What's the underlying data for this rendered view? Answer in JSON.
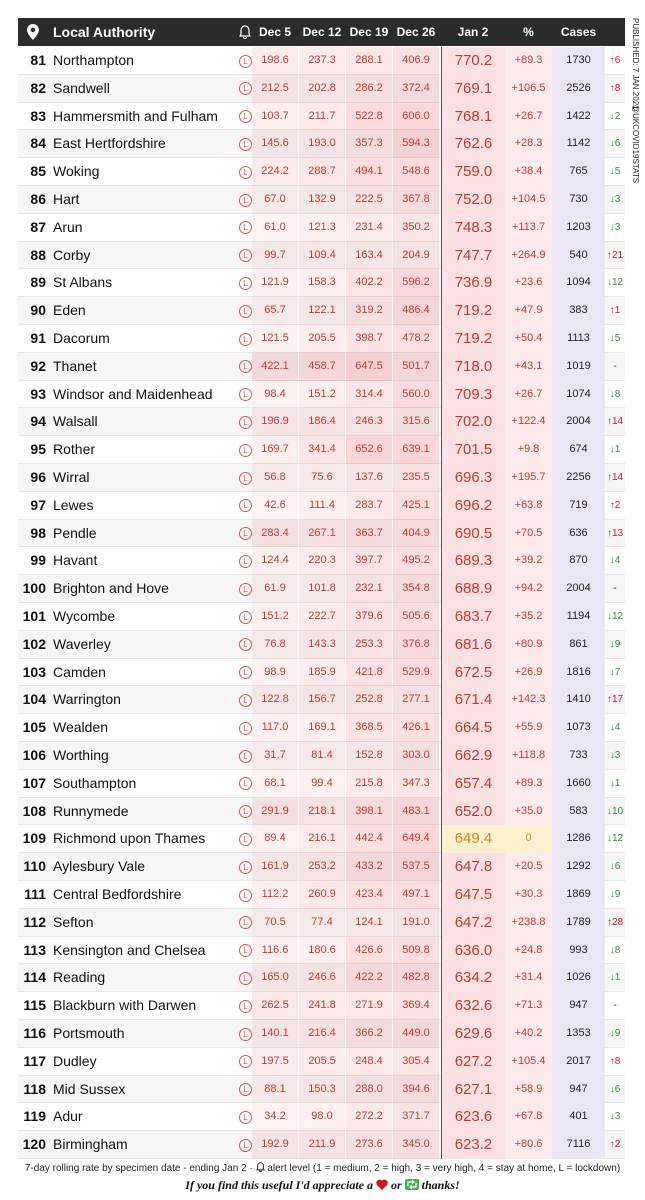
{
  "side": {
    "published": "PUBLISHED: 7 JAN 2021",
    "handle": "@UKCOVID19STATS"
  },
  "table": {
    "headers": [
      "Local Authority",
      "Dec 5",
      "Dec 12",
      "Dec 19",
      "Dec 26",
      "Jan 2",
      "%",
      "Cases"
    ],
    "rows": [
      [
        "81",
        "Northampton",
        "L",
        "198.6",
        "237.3",
        "288.1",
        "406.9",
        "770.2",
        "+89.3",
        "1730",
        "↑6"
      ],
      [
        "82",
        "Sandwell",
        "L",
        "212.5",
        "202.8",
        "286.2",
        "372.4",
        "769.1",
        "+106.5",
        "2526",
        "↑8"
      ],
      [
        "83",
        "Hammersmith and Fulham",
        "L",
        "103.7",
        "211.7",
        "522.8",
        "606.0",
        "768.1",
        "+26.7",
        "1422",
        "↓2"
      ],
      [
        "84",
        "East Hertfordshire",
        "L",
        "145.6",
        "193.0",
        "357.3",
        "594.3",
        "762.6",
        "+28.3",
        "1142",
        "↓6"
      ],
      [
        "85",
        "Woking",
        "L",
        "224.2",
        "288.7",
        "494.1",
        "548.6",
        "759.0",
        "+38.4",
        "765",
        "↓5"
      ],
      [
        "86",
        "Hart",
        "L",
        "67.0",
        "132.9",
        "222.5",
        "367.8",
        "752.0",
        "+104.5",
        "730",
        "↓3"
      ],
      [
        "87",
        "Arun",
        "L",
        "61.0",
        "121.3",
        "231.4",
        "350.2",
        "748.3",
        "+113.7",
        "1203",
        "↓3"
      ],
      [
        "88",
        "Corby",
        "L",
        "99.7",
        "109.4",
        "163.4",
        "204.9",
        "747.7",
        "+264.9",
        "540",
        "↑21"
      ],
      [
        "89",
        "St Albans",
        "L",
        "121.9",
        "158.3",
        "402.2",
        "596.2",
        "736.9",
        "+23.6",
        "1094",
        "↓12"
      ],
      [
        "90",
        "Eden",
        "L",
        "65.7",
        "122.1",
        "319.2",
        "486.4",
        "719.2",
        "+47.9",
        "383",
        "↑1"
      ],
      [
        "91",
        "Dacorum",
        "L",
        "121.5",
        "205.5",
        "398.7",
        "478.2",
        "719.2",
        "+50.4",
        "1113",
        "↓5"
      ],
      [
        "92",
        "Thanet",
        "L",
        "422.1",
        "458.7",
        "647.5",
        "501.7",
        "718.0",
        "+43.1",
        "1019",
        "-"
      ],
      [
        "93",
        "Windsor and Maidenhead",
        "L",
        "98.4",
        "151.2",
        "314.4",
        "560.0",
        "709.3",
        "+26.7",
        "1074",
        "↓8"
      ],
      [
        "94",
        "Walsall",
        "L",
        "196.9",
        "186.4",
        "246.3",
        "315.6",
        "702.0",
        "+122.4",
        "2004",
        "↑14"
      ],
      [
        "95",
        "Rother",
        "L",
        "169.7",
        "341.4",
        "652.6",
        "639.1",
        "701.5",
        "+9.8",
        "674",
        "↓1"
      ],
      [
        "96",
        "Wirral",
        "L",
        "56.8",
        "75.6",
        "137.6",
        "235.5",
        "696.3",
        "+195.7",
        "2256",
        "↑14"
      ],
      [
        "97",
        "Lewes",
        "L",
        "42.6",
        "111.4",
        "283.7",
        "425.1",
        "696.2",
        "+63.8",
        "719",
        "↑2"
      ],
      [
        "98",
        "Pendle",
        "L",
        "283.4",
        "267.1",
        "363.7",
        "404.9",
        "690.5",
        "+70.5",
        "636",
        "↑13"
      ],
      [
        "99",
        "Havant",
        "L",
        "124.4",
        "220.3",
        "397.7",
        "495.2",
        "689.3",
        "+39.2",
        "870",
        "↓4"
      ],
      [
        "100",
        "Brighton and Hove",
        "L",
        "61.9",
        "101.8",
        "232.1",
        "354.8",
        "688.9",
        "+94.2",
        "2004",
        "-"
      ],
      [
        "101",
        "Wycombe",
        "L",
        "151.2",
        "222.7",
        "379.6",
        "505.6",
        "683.7",
        "+35.2",
        "1194",
        "↓12"
      ],
      [
        "102",
        "Waverley",
        "L",
        "76.8",
        "143.3",
        "253.3",
        "376.8",
        "681.6",
        "+80.9",
        "861",
        "↓9"
      ],
      [
        "103",
        "Camden",
        "L",
        "98.9",
        "185.9",
        "421.8",
        "529.9",
        "672.5",
        "+26.9",
        "1816",
        "↓7"
      ],
      [
        "104",
        "Warrington",
        "L",
        "122.8",
        "156.7",
        "252.8",
        "277.1",
        "671.4",
        "+142.3",
        "1410",
        "↑17"
      ],
      [
        "105",
        "Wealden",
        "L",
        "117.0",
        "169.1",
        "368.5",
        "426.1",
        "664.5",
        "+55.9",
        "1073",
        "↓4"
      ],
      [
        "106",
        "Worthing",
        "L",
        "31.7",
        "81.4",
        "152.8",
        "303.0",
        "662.9",
        "+118.8",
        "733",
        "↓3"
      ],
      [
        "107",
        "Southampton",
        "L",
        "68.1",
        "99.4",
        "215.8",
        "347.3",
        "657.4",
        "+89.3",
        "1660",
        "↓1"
      ],
      [
        "108",
        "Runnymede",
        "L",
        "291.9",
        "218.1",
        "398.1",
        "483.1",
        "652.0",
        "+35.0",
        "583",
        "↓10"
      ],
      [
        "109",
        "Richmond upon Thames",
        "L",
        "89.4",
        "216.1",
        "442.4",
        "649.4",
        "649.4",
        "0",
        "1286",
        "↓12"
      ],
      [
        "110",
        "Aylesbury Vale",
        "L",
        "161.9",
        "253.2",
        "433.2",
        "537.5",
        "647.8",
        "+20.5",
        "1292",
        "↓6"
      ],
      [
        "111",
        "Central Bedfordshire",
        "L",
        "112.2",
        "260.9",
        "423.4",
        "497.1",
        "647.5",
        "+30.3",
        "1869",
        "↓9"
      ],
      [
        "112",
        "Sefton",
        "L",
        "70.5",
        "77.4",
        "124.1",
        "191.0",
        "647.2",
        "+238.8",
        "1789",
        "↑28"
      ],
      [
        "113",
        "Kensington and Chelsea",
        "L",
        "116.6",
        "180.6",
        "426.6",
        "509.8",
        "636.0",
        "+24.8",
        "993",
        "↓8"
      ],
      [
        "114",
        "Reading",
        "L",
        "165.0",
        "246.6",
        "422.2",
        "482.8",
        "634.2",
        "+31.4",
        "1026",
        "↓1"
      ],
      [
        "115",
        "Blackburn with Darwen",
        "L",
        "262.5",
        "241.8",
        "271.9",
        "369.4",
        "632.6",
        "+71.3",
        "947",
        "-"
      ],
      [
        "116",
        "Portsmouth",
        "L",
        "140.1",
        "216.4",
        "366.2",
        "449.0",
        "629.6",
        "+40.2",
        "1353",
        "↓9"
      ],
      [
        "117",
        "Dudley",
        "L",
        "197.5",
        "205.5",
        "248.4",
        "305.4",
        "627.2",
        "+105.4",
        "2017",
        "↑8"
      ],
      [
        "118",
        "Mid Sussex",
        "L",
        "88.1",
        "150.3",
        "288.0",
        "394.6",
        "627.1",
        "+58.9",
        "947",
        "↓6"
      ],
      [
        "119",
        "Adur",
        "L",
        "34.2",
        "98.0",
        "272.2",
        "371.7",
        "623.6",
        "+67.8",
        "401",
        "↓3"
      ],
      [
        "120",
        "Birmingham",
        "L",
        "192.9",
        "211.9",
        "273.6",
        "345.0",
        "623.2",
        "+80.6",
        "7116",
        "↑2"
      ]
    ]
  },
  "footer": {
    "note": "7-day rolling rate by specimen date - ending Jan 2 · ",
    "note2": "alert level (1 = medium, 2 = high, 3 = very high, 4 = stay at home, L = lockdown)",
    "thanks1": "If you find this useful I'd appreciate a",
    "thanks2": "or",
    "thanks3": "thanks!"
  }
}
